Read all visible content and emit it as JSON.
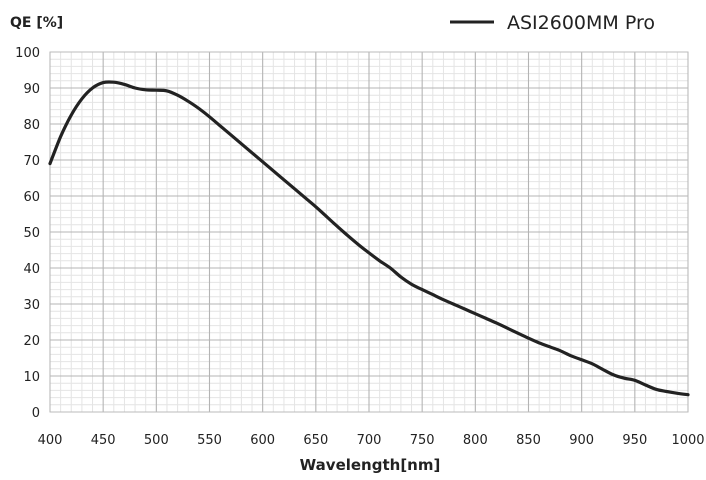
{
  "chart_data": {
    "type": "line",
    "ylabel": "QE [%]",
    "xlabel": "Wavelength[nm]",
    "xlim": [
      400,
      1000
    ],
    "ylim": [
      0,
      100
    ],
    "x_ticks": [
      400,
      450,
      500,
      550,
      600,
      650,
      700,
      750,
      800,
      850,
      900,
      950,
      1000
    ],
    "y_ticks": [
      0,
      10,
      20,
      30,
      40,
      50,
      60,
      70,
      80,
      90,
      100
    ],
    "grid": true,
    "legend_position": "top-right",
    "series": [
      {
        "name": "ASI2600MM Pro",
        "color": "#222222",
        "x": [
          400,
          410,
          420,
          430,
          440,
          450,
          460,
          470,
          480,
          490,
          500,
          510,
          520,
          530,
          540,
          550,
          560,
          570,
          580,
          590,
          600,
          610,
          620,
          630,
          640,
          650,
          660,
          670,
          680,
          690,
          700,
          710,
          720,
          730,
          740,
          750,
          760,
          770,
          780,
          790,
          800,
          810,
          820,
          830,
          840,
          850,
          860,
          870,
          880,
          890,
          900,
          910,
          920,
          930,
          940,
          950,
          960,
          970,
          980,
          990,
          1000
        ],
        "y": [
          69,
          76.5,
          82.5,
          87,
          90,
          91.5,
          91.6,
          91,
          90,
          89.5,
          89.4,
          89.2,
          88,
          86.3,
          84.3,
          82,
          79.5,
          77,
          74.5,
          72,
          69.5,
          67,
          64.5,
          62,
          59.5,
          57,
          54.3,
          51.6,
          49,
          46.5,
          44.2,
          42,
          40,
          37.5,
          35.5,
          34,
          32.6,
          31.2,
          29.9,
          28.6,
          27.3,
          26,
          24.7,
          23.3,
          21.9,
          20.5,
          19.2,
          18.1,
          17,
          15.6,
          14.5,
          13.4,
          11.8,
          10.3,
          9.4,
          8.8,
          7.5,
          6.3,
          5.7,
          5.2,
          4.8
        ]
      }
    ]
  }
}
